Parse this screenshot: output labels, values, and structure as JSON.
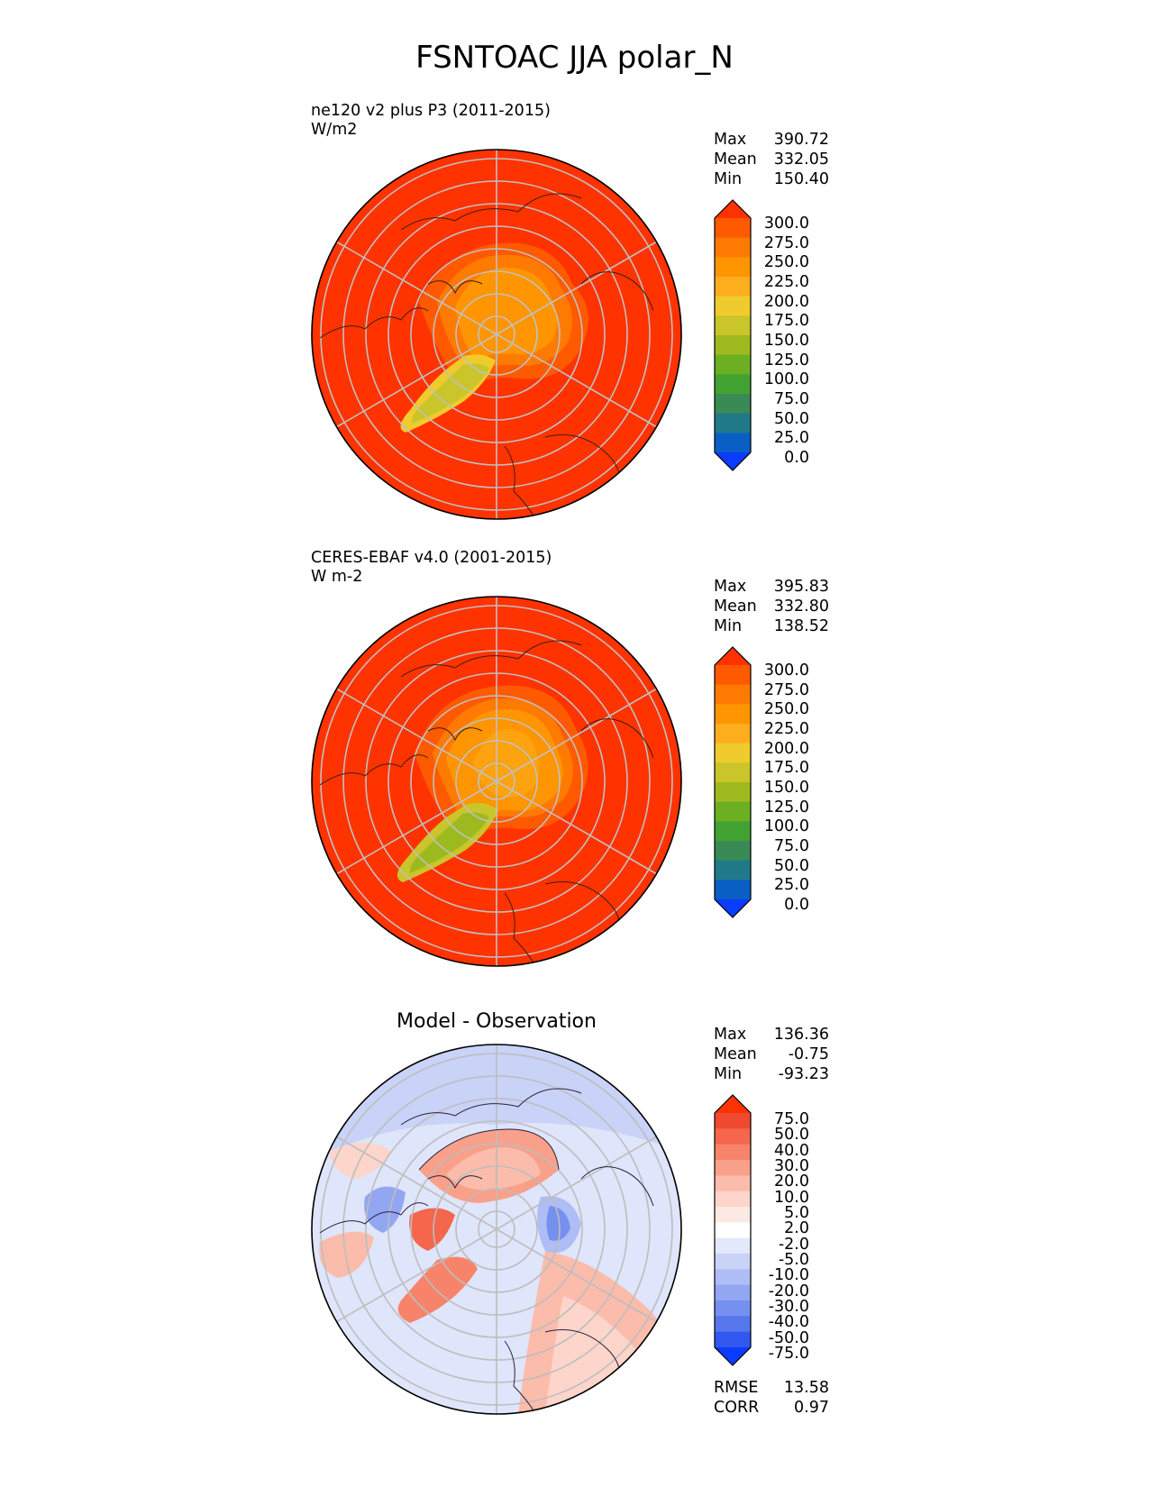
{
  "figure": {
    "title": "FSNTOAC JJA polar_N"
  },
  "panels": [
    {
      "id": "test",
      "title_lines": [
        "ne120 v2 plus P3 (2011-2015)",
        "W/m2"
      ],
      "stats": [
        {
          "k": "Max",
          "v": "390.72"
        },
        {
          "k": "Mean",
          "v": "332.05"
        },
        {
          "k": "Min",
          "v": "150.40"
        }
      ]
    },
    {
      "id": "ref",
      "title_lines": [
        "CERES-EBAF v4.0 (2001-2015)",
        "W m-2"
      ],
      "stats": [
        {
          "k": "Max",
          "v": "395.83"
        },
        {
          "k": "Mean",
          "v": "332.80"
        },
        {
          "k": "Min",
          "v": "138.52"
        }
      ]
    },
    {
      "id": "diff",
      "title": "Model - Observation",
      "stats": [
        {
          "k": "Max",
          "v": "136.36"
        },
        {
          "k": "Mean",
          "v": "-0.75"
        },
        {
          "k": "Min",
          "v": "-93.23"
        }
      ],
      "metrics": [
        {
          "k": "RMSE",
          "v": "13.58"
        },
        {
          "k": "CORR",
          "v": "0.97"
        }
      ]
    }
  ],
  "colorbar_main": {
    "ticks": [
      "300.0",
      "275.0",
      "250.0",
      "225.0",
      "200.0",
      "175.0",
      "150.0",
      "125.0",
      "100.0",
      "75.0",
      "50.0",
      "25.0",
      "0.0"
    ],
    "colors": [
      "#ff3300",
      "#ff5a00",
      "#ff7a00",
      "#ff9500",
      "#fcae1e",
      "#f0cb2d",
      "#c9c52a",
      "#9cba1f",
      "#6daf23",
      "#42a232",
      "#3a8a55",
      "#207a8a",
      "#0a5fc4",
      "#0a3cff"
    ]
  },
  "colorbar_diff": {
    "ticks": [
      "75.0",
      "50.0",
      "40.0",
      "30.0",
      "20.0",
      "10.0",
      "5.0",
      "2.0",
      "-2.0",
      "-5.0",
      "-10.0",
      "-20.0",
      "-30.0",
      "-40.0",
      "-50.0",
      "-75.0"
    ],
    "colors": [
      "#ff3300",
      "#ef4a2f",
      "#f4674d",
      "#f7846a",
      "#f9a08a",
      "#fbbcac",
      "#fdd5ca",
      "#fde9e3",
      "#ffffff",
      "#e3e8fb",
      "#c9d2f7",
      "#aebdf5",
      "#92a6f2",
      "#7690ef",
      "#5576ed",
      "#3358ef",
      "#0a3cff"
    ]
  },
  "chart_data": [
    {
      "type": "heatmap",
      "projection": "north polar stereographic",
      "variable": "FSNTOAC",
      "season": "JJA",
      "title": "ne120 v2 plus P3 (2011-2015)",
      "units": "W/m2",
      "contour_levels": [
        0,
        25,
        50,
        75,
        100,
        125,
        150,
        175,
        200,
        225,
        250,
        275,
        300
      ],
      "stats": {
        "max": 390.72,
        "mean": 332.05,
        "min": 150.4
      }
    },
    {
      "type": "heatmap",
      "projection": "north polar stereographic",
      "variable": "FSNTOAC",
      "season": "JJA",
      "title": "CERES-EBAF v4.0 (2001-2015)",
      "units": "W m-2",
      "contour_levels": [
        0,
        25,
        50,
        75,
        100,
        125,
        150,
        175,
        200,
        225,
        250,
        275,
        300
      ],
      "stats": {
        "max": 395.83,
        "mean": 332.8,
        "min": 138.52
      }
    },
    {
      "type": "heatmap",
      "projection": "north polar stereographic",
      "title": "Model - Observation",
      "contour_levels": [
        -75,
        -50,
        -40,
        -30,
        -20,
        -10,
        -5,
        -2,
        2,
        5,
        10,
        20,
        30,
        40,
        50,
        75
      ],
      "stats": {
        "max": 136.36,
        "mean": -0.75,
        "min": -93.23,
        "rmse": 13.58,
        "corr": 0.97
      }
    }
  ]
}
